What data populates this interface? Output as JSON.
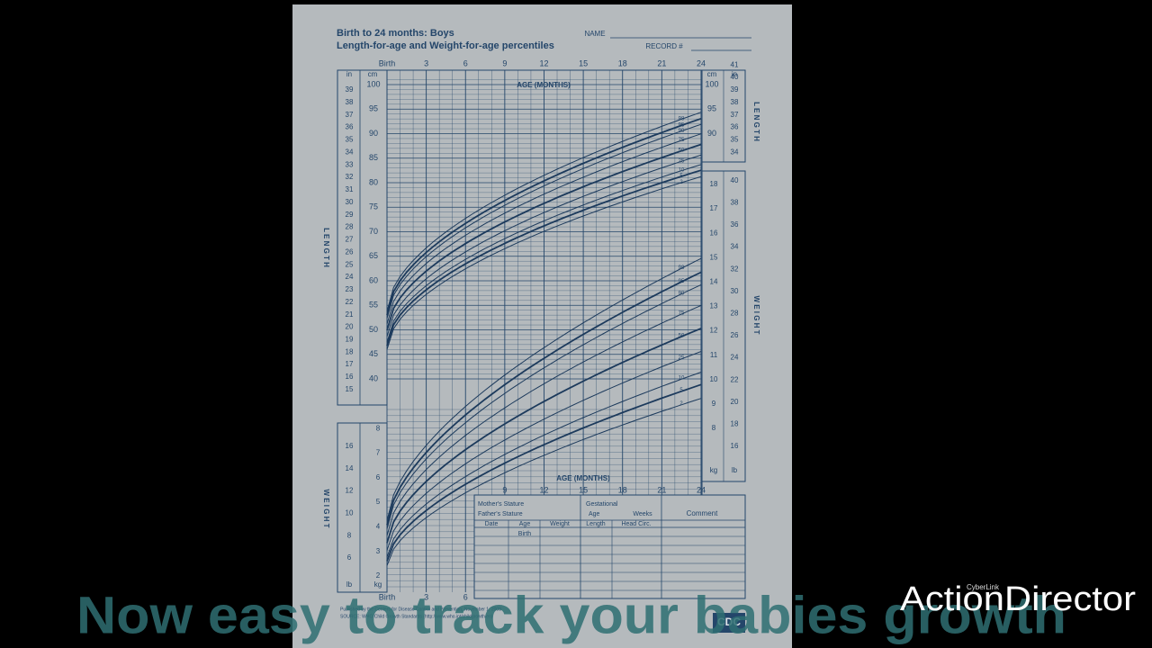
{
  "overlay": {
    "caption": "Now easy to track your babies growth",
    "brand": "ActionDirector",
    "brand_small": "CyberLink"
  },
  "sheet": {
    "title": "Birth to 24 months: Boys",
    "subtitle": "Length-for-age and Weight-for-age percentiles",
    "name_label": "NAME",
    "record_label": "RECORD #",
    "age_top": [
      "Birth",
      "3",
      "6",
      "9",
      "12",
      "15",
      "18",
      "21",
      "24"
    ],
    "age_axis_title": "AGE (MONTHS)",
    "age_lower": [
      "9",
      "12",
      "15",
      "18",
      "21",
      "24"
    ],
    "age_bottom": [
      "Birth",
      "3",
      "6"
    ],
    "unit_in": "in",
    "unit_cm": "cm",
    "unit_kg": "kg",
    "unit_lb": "lb",
    "length_word": "L E N G T H",
    "weight_word": "W E I G H T",
    "length_in_left": [
      39,
      38,
      37,
      36,
      35,
      34,
      33,
      32,
      31,
      30,
      29,
      28,
      27,
      26,
      25,
      24,
      23,
      22,
      21,
      20,
      19,
      18,
      17,
      16,
      15
    ],
    "length_cm_left": [
      100,
      95,
      90,
      85,
      80,
      75,
      70,
      65,
      60,
      55,
      50,
      45,
      40
    ],
    "length_cm_right": [
      100,
      95,
      90
    ],
    "length_in_right": [
      41,
      40,
      39,
      38,
      37,
      36,
      35,
      34
    ],
    "weight_kg_right": [
      18,
      17,
      16,
      15,
      14,
      13,
      12,
      11,
      10,
      9,
      8
    ],
    "weight_lb_right": [
      40,
      38,
      36,
      34,
      32,
      30,
      28,
      26,
      24,
      22,
      20,
      18,
      16
    ],
    "weight_kg_left": [
      8,
      7,
      6,
      5,
      4,
      3,
      2
    ],
    "weight_lb_left": [
      16,
      14,
      12,
      10,
      8,
      6
    ],
    "percentiles": [
      98,
      95,
      90,
      75,
      50,
      25,
      10,
      5,
      2
    ],
    "table": {
      "mother": "Mother's Stature",
      "father": "Father's Stature",
      "gestational": "Gestational",
      "age": "Age",
      "weeks": "Weeks",
      "comment": "Comment",
      "columns": [
        "Date",
        "Age",
        "Weight",
        "Length",
        "Head Circ."
      ],
      "first_row_age": "Birth"
    },
    "footer": {
      "published": "Published by the Centers for Disease Control and Prevention, November 1, 2009",
      "source": "SOURCE: WHO Child Growth Standards (http://www.who.int/childgrowth/en)"
    },
    "logo": "CDC"
  }
}
